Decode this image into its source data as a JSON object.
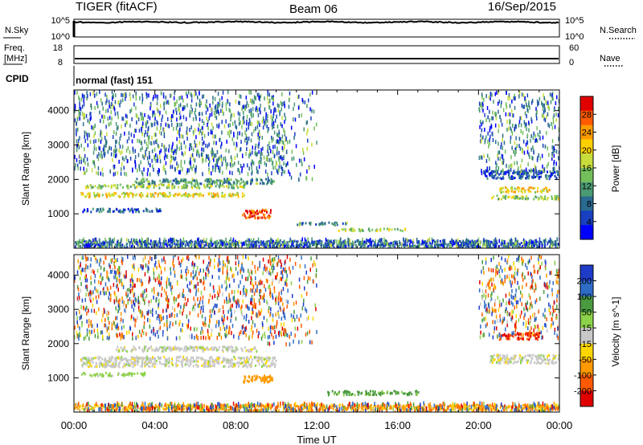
{
  "header": {
    "station": "TIGER (fitACF)",
    "beam": "Beam 06",
    "date": "16/Sep/2015"
  },
  "top_panels": {
    "nsky": {
      "label": "N.Sky",
      "ticks": [
        "10^5",
        "10^0"
      ]
    },
    "nsearch": {
      "label": "N.Search",
      "ticks": [
        "10^5",
        "10^0"
      ]
    },
    "freq": {
      "label_1": "Freq.",
      "label_2": "[MHz]",
      "ticks": [
        "18",
        "8"
      ]
    },
    "nave": {
      "label": "Nave",
      "ticks": [
        "60",
        "0"
      ]
    },
    "cpid": {
      "label": "CPID",
      "mode": "normal (fast) 151"
    }
  },
  "chart_data": [
    {
      "type": "heatmap",
      "name": "power",
      "ylabel": "Slant Range [km]",
      "xlabel": "",
      "ylim": [
        0,
        4600
      ],
      "xlim": [
        0,
        24
      ],
      "yticks": [
        1000,
        2000,
        3000,
        4000
      ],
      "colorbar": {
        "label": "Power [dB]",
        "ticks": [
          "28",
          "24",
          "20",
          "16",
          "12",
          "8",
          "4"
        ],
        "colors": [
          "#e00000",
          "#ff5a00",
          "#ff9a00",
          "#ffd000",
          "#c8dc3c",
          "#74bf5c",
          "#4a9a72",
          "#2a6a90",
          "#1840c0",
          "#0000ff"
        ]
      },
      "bands": [
        {
          "t0": 0.3,
          "t1": 8.4,
          "r0": 1520,
          "r1": 1640,
          "value": 20
        },
        {
          "t0": 0.3,
          "t1": 8.4,
          "r0": 1780,
          "r1": 1880,
          "value": 16
        },
        {
          "t0": 3.0,
          "t1": 10.0,
          "r0": 1900,
          "r1": 2050,
          "value": 12
        },
        {
          "t0": 0.3,
          "t1": 4.5,
          "r0": 1080,
          "r1": 1180,
          "value": 8
        },
        {
          "t0": 8.3,
          "t1": 9.7,
          "r0": 900,
          "r1": 1150,
          "value": 28
        },
        {
          "t0": 11.0,
          "t1": 13.5,
          "r0": 700,
          "r1": 780,
          "value": 12
        },
        {
          "t0": 13.0,
          "t1": 16.5,
          "r0": 530,
          "r1": 600,
          "value": 16
        },
        {
          "t0": 20.5,
          "t1": 24.0,
          "r0": 1450,
          "r1": 1560,
          "value": 16
        },
        {
          "t0": 21.0,
          "t1": 23.5,
          "r0": 1650,
          "r1": 1800,
          "value": 20
        },
        {
          "t0": 20.3,
          "t1": 24.0,
          "r0": 2050,
          "r1": 2300,
          "value": 8
        },
        {
          "t0": 0.0,
          "t1": 24.0,
          "r0": 80,
          "r1": 260,
          "value": 8
        }
      ]
    },
    {
      "type": "heatmap",
      "name": "velocity",
      "ylabel": "Slant Range [km]",
      "xlabel": "Time UT",
      "ylim": [
        0,
        4600
      ],
      "xlim": [
        0,
        24
      ],
      "xticks": [
        "00:00",
        "04:00",
        "08:00",
        "12:00",
        "16:00",
        "20:00",
        "00:00"
      ],
      "yticks": [
        1000,
        2000,
        3000,
        4000
      ],
      "colorbar": {
        "label": "Velocity [m s^-1]",
        "ticks": [
          "200",
          "100",
          "50",
          "15",
          "-15",
          "-50",
          "-100",
          "-200"
        ],
        "colors": [
          "#1e3cc8",
          "#2e6cc8",
          "#4a9a40",
          "#8cd24a",
          "#c8c8c8",
          "#ffd700",
          "#ff9a00",
          "#ff5a00",
          "#e00000"
        ]
      },
      "bands": [
        {
          "t0": 0.3,
          "t1": 10.0,
          "r0": 1350,
          "r1": 1650,
          "value": 0
        },
        {
          "t0": 2.0,
          "t1": 9.0,
          "r0": 1800,
          "r1": 1950,
          "value": 0
        },
        {
          "t0": 0.3,
          "t1": 3.5,
          "r0": 1080,
          "r1": 1180,
          "value": 30
        },
        {
          "t0": 8.3,
          "t1": 9.8,
          "r0": 900,
          "r1": 1100,
          "value": -80
        },
        {
          "t0": 12.5,
          "t1": 17.0,
          "r0": 530,
          "r1": 650,
          "value": 60
        },
        {
          "t0": 20.5,
          "t1": 24.0,
          "r0": 1450,
          "r1": 1700,
          "value": 0
        },
        {
          "t0": 21.0,
          "t1": 23.0,
          "r0": 2150,
          "r1": 2350,
          "value": -200
        },
        {
          "t0": 0.0,
          "t1": 24.0,
          "r0": 80,
          "r1": 250,
          "value": -60
        }
      ]
    }
  ]
}
